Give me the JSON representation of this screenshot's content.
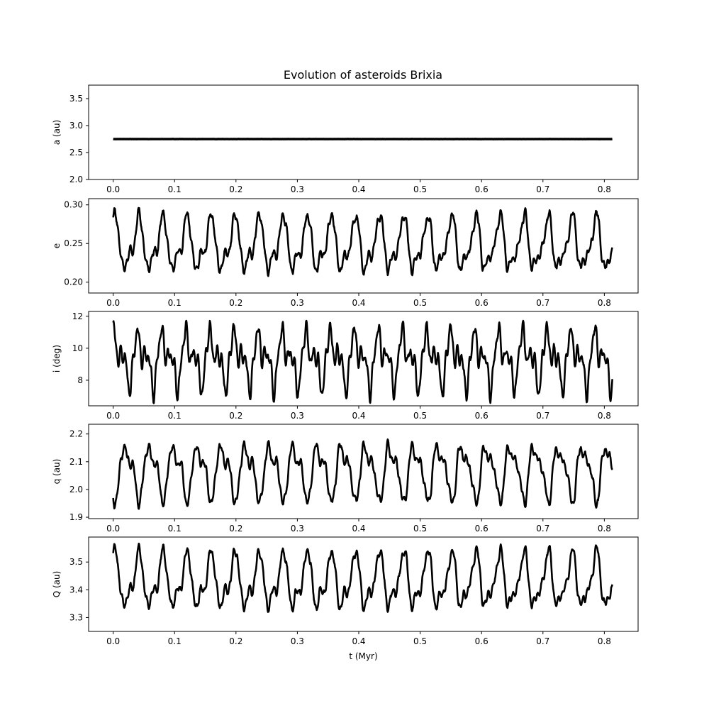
{
  "chart_data": {
    "type": "line",
    "title": "Evolution of asteroids Brixia",
    "xlabel": "t (Myr)",
    "xlim": [
      -0.04,
      0.855
    ],
    "xticks": [
      0.0,
      0.1,
      0.2,
      0.3,
      0.4,
      0.5,
      0.6,
      0.7,
      0.8
    ],
    "xtick_labels": [
      "0.0",
      "0.1",
      "0.2",
      "0.3",
      "0.4",
      "0.5",
      "0.6",
      "0.7",
      "0.8"
    ],
    "x_range": [
      0.0,
      0.813
    ],
    "line_color": "#000000",
    "grid": false,
    "panels": [
      {
        "key": "a",
        "ylabel": "a (au)",
        "ylim": [
          2.0,
          3.75
        ],
        "yticks": [
          2.0,
          2.5,
          3.0,
          3.5
        ],
        "ytick_labels": [
          "2.0",
          "2.5",
          "3.0",
          "3.5"
        ],
        "mean": 2.75,
        "components": [],
        "noise": 0.002
      },
      {
        "key": "e",
        "ylabel": "e",
        "ylim": [
          0.186,
          0.308
        ],
        "yticks": [
          0.2,
          0.25,
          0.3
        ],
        "ytick_labels": [
          "0.20",
          "0.25",
          "0.30"
        ],
        "mean": 0.248,
        "components": [
          {
            "amp": 0.03,
            "period": 0.0392,
            "phase": 1.3
          },
          {
            "amp": 0.012,
            "period": 0.0196,
            "phase": 0.2
          },
          {
            "amp": 0.005,
            "period": 0.0129,
            "phase": 0.7
          },
          {
            "amp": 0.004,
            "period": 0.0067,
            "phase": 0.1
          }
        ],
        "noise": 0.004
      },
      {
        "key": "i",
        "ylabel": "i (deg)",
        "ylim": [
          6.4,
          12.3
        ],
        "yticks": [
          8,
          10,
          12
        ],
        "ytick_labels": [
          "8",
          "10",
          "12"
        ],
        "mean": 9.35,
        "components": [
          {
            "amp": 1.2,
            "period": 0.0392,
            "phase": 0.9
          },
          {
            "amp": 0.9,
            "period": 0.0196,
            "phase": 2.1
          },
          {
            "amp": 0.5,
            "period": 0.0098,
            "phase": 0.4
          },
          {
            "amp": 0.3,
            "period": 0.0063,
            "phase": 1.7
          }
        ],
        "noise": 0.2
      },
      {
        "key": "q",
        "ylabel": "q (au)",
        "ylim": [
          1.895,
          2.235
        ],
        "yticks": [
          1.9,
          2.0,
          2.1,
          2.2
        ],
        "ytick_labels": [
          "1.9",
          "2.0",
          "2.1",
          "2.2"
        ],
        "mean": 2.065,
        "components": [
          {
            "amp": 0.085,
            "period": 0.0392,
            "phase": 4.44
          },
          {
            "amp": 0.034,
            "period": 0.0196,
            "phase": 3.34
          },
          {
            "amp": 0.014,
            "period": 0.0129,
            "phase": 3.84
          },
          {
            "amp": 0.011,
            "period": 0.0067,
            "phase": 3.24
          }
        ],
        "noise": 0.01
      },
      {
        "key": "Q",
        "ylabel": "Q (au)",
        "ylim": [
          3.25,
          3.59
        ],
        "yticks": [
          3.3,
          3.4,
          3.5
        ],
        "ytick_labels": [
          "3.3",
          "3.4",
          "3.5"
        ],
        "mean": 3.43,
        "components": [
          {
            "amp": 0.085,
            "period": 0.0392,
            "phase": 1.3
          },
          {
            "amp": 0.034,
            "period": 0.0196,
            "phase": 0.2
          },
          {
            "amp": 0.014,
            "period": 0.0129,
            "phase": 0.7
          },
          {
            "amp": 0.011,
            "period": 0.0067,
            "phase": 0.1
          }
        ],
        "noise": 0.01
      }
    ]
  }
}
